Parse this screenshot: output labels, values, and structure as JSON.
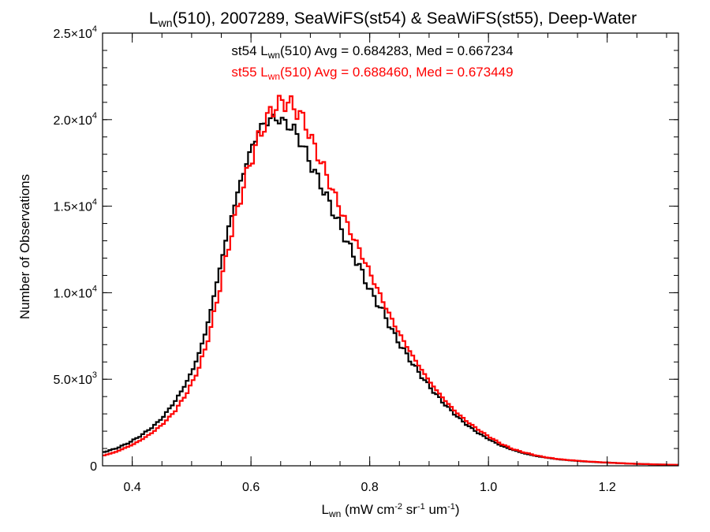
{
  "chart_data": {
    "type": "line",
    "title": {
      "parts": [
        {
          "text": "L",
          "sub": false
        },
        {
          "text": "wn",
          "sub": true
        },
        {
          "text": "(510), 2007289, SeaWiFS(st54) & SeaWiFS(st55), Deep-Water",
          "sub": false
        }
      ]
    },
    "xlabel": {
      "parts": [
        {
          "text": "L",
          "kind": "n"
        },
        {
          "text": "wn",
          "kind": "sub"
        },
        {
          "text": " (mW cm",
          "kind": "n"
        },
        {
          "text": "-2",
          "kind": "sup"
        },
        {
          "text": " sr",
          "kind": "n"
        },
        {
          "text": "-1",
          "kind": "sup"
        },
        {
          "text": " um",
          "kind": "n"
        },
        {
          "text": "-1",
          "kind": "sup"
        },
        {
          "text": ")",
          "kind": "n"
        }
      ]
    },
    "ylabel": "Number of Observations",
    "xlim": [
      0.35,
      1.32
    ],
    "ylim": [
      0,
      25000
    ],
    "xticks": [
      {
        "value": 0.4,
        "label": "0.4"
      },
      {
        "value": 0.6,
        "label": "0.6"
      },
      {
        "value": 0.8,
        "label": "0.8"
      },
      {
        "value": 1.0,
        "label": "1.0"
      },
      {
        "value": 1.2,
        "label": "1.2"
      }
    ],
    "yticks": [
      {
        "value": 0,
        "mant": "0",
        "exp": ""
      },
      {
        "value": 5000,
        "mant": "5.0×10",
        "exp": "3"
      },
      {
        "value": 10000,
        "mant": "1.0×10",
        "exp": "4"
      },
      {
        "value": 15000,
        "mant": "1.5×10",
        "exp": "4"
      },
      {
        "value": 20000,
        "mant": "2.0×10",
        "exp": "4"
      },
      {
        "value": 25000,
        "mant": "2.5×10",
        "exp": "4"
      }
    ],
    "annotations": [
      {
        "color": "#000000",
        "parts": [
          {
            "text": "st54 L",
            "sub": false
          },
          {
            "text": "wn",
            "sub": true
          },
          {
            "text": "(510) Avg = 0.684283, Med = 0.667234",
            "sub": false
          }
        ]
      },
      {
        "color": "#ff0000",
        "parts": [
          {
            "text": "st55 L",
            "sub": false
          },
          {
            "text": "wn",
            "sub": true
          },
          {
            "text": "(510) Avg = 0.688460, Med = 0.673449",
            "sub": false
          }
        ]
      }
    ],
    "series": [
      {
        "color": "#000000",
        "step_width": 0.005,
        "x": [
          0.35,
          0.36,
          0.37,
          0.38,
          0.39,
          0.4,
          0.41,
          0.42,
          0.43,
          0.44,
          0.45,
          0.46,
          0.47,
          0.48,
          0.49,
          0.5,
          0.51,
          0.52,
          0.53,
          0.54,
          0.55,
          0.56,
          0.57,
          0.58,
          0.59,
          0.6,
          0.61,
          0.62,
          0.63,
          0.64,
          0.65,
          0.66,
          0.67,
          0.68,
          0.69,
          0.7,
          0.72,
          0.74,
          0.76,
          0.78,
          0.8,
          0.82,
          0.84,
          0.86,
          0.88,
          0.9,
          0.92,
          0.94,
          0.96,
          0.98,
          1.0,
          1.02,
          1.04,
          1.06,
          1.08,
          1.1,
          1.12,
          1.14,
          1.16,
          1.18,
          1.2,
          1.22,
          1.24,
          1.26,
          1.28,
          1.3,
          1.32
        ],
        "y": [
          800,
          900,
          1000,
          1150,
          1300,
          1500,
          1700,
          1950,
          2200,
          2500,
          2850,
          3300,
          3750,
          4300,
          4900,
          5600,
          6500,
          7600,
          9000,
          10600,
          12200,
          13800,
          15100,
          16400,
          17500,
          18500,
          19300,
          19800,
          20000,
          20100,
          19900,
          19700,
          19400,
          18800,
          18100,
          17300,
          15900,
          14400,
          12900,
          11500,
          10000,
          8900,
          7500,
          6400,
          5400,
          4500,
          3700,
          3000,
          2400,
          1900,
          1500,
          1150,
          900,
          700,
          550,
          450,
          360,
          300,
          250,
          210,
          180,
          150,
          120,
          100,
          80,
          60,
          50
        ]
      },
      {
        "color": "#ff0000",
        "step_width": 0.005,
        "x": [
          0.35,
          0.36,
          0.37,
          0.38,
          0.39,
          0.4,
          0.41,
          0.42,
          0.43,
          0.44,
          0.45,
          0.46,
          0.47,
          0.48,
          0.49,
          0.5,
          0.51,
          0.52,
          0.53,
          0.54,
          0.55,
          0.56,
          0.57,
          0.58,
          0.59,
          0.6,
          0.61,
          0.62,
          0.63,
          0.64,
          0.65,
          0.66,
          0.67,
          0.68,
          0.69,
          0.7,
          0.72,
          0.74,
          0.76,
          0.78,
          0.8,
          0.82,
          0.84,
          0.86,
          0.88,
          0.9,
          0.92,
          0.94,
          0.96,
          0.98,
          1.0,
          1.02,
          1.04,
          1.06,
          1.08,
          1.1,
          1.12,
          1.14,
          1.16,
          1.18,
          1.2,
          1.22,
          1.24,
          1.26,
          1.28,
          1.3,
          1.32
        ],
        "y": [
          600,
          700,
          800,
          950,
          1100,
          1250,
          1450,
          1650,
          1900,
          2150,
          2450,
          2800,
          3200,
          3700,
          4250,
          4900,
          5700,
          6700,
          8000,
          9500,
          11100,
          12700,
          14200,
          15500,
          16800,
          17900,
          18900,
          19700,
          20400,
          20800,
          21000,
          21000,
          20700,
          20300,
          19700,
          18800,
          17200,
          15500,
          13900,
          12500,
          11000,
          9500,
          8100,
          6900,
          5800,
          4800,
          3950,
          3200,
          2600,
          2100,
          1650,
          1250,
          950,
          750,
          580,
          460,
          370,
          310,
          260,
          220,
          180,
          150,
          120,
          100,
          80,
          65,
          50
        ]
      }
    ]
  }
}
